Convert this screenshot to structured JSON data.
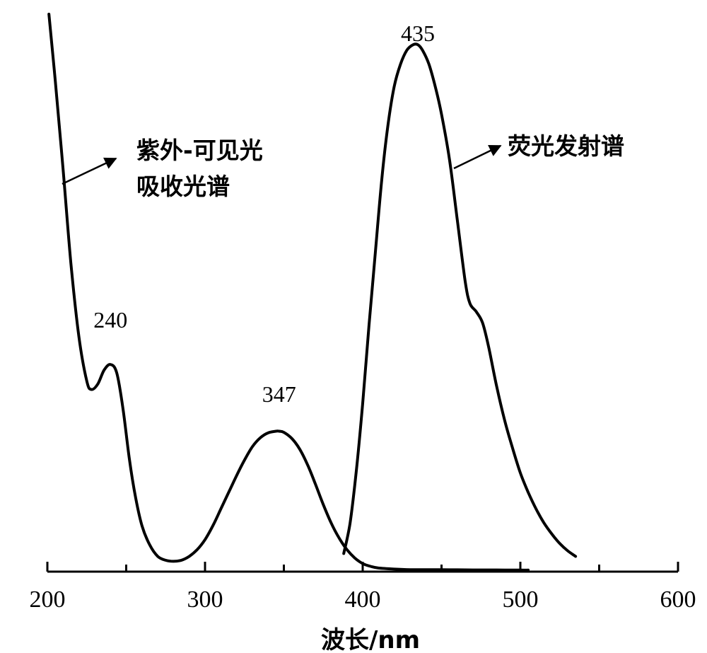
{
  "chart_data": {
    "type": "line",
    "title": "",
    "xlabel": "波长/nm",
    "ylabel": "",
    "xlim": [
      200,
      600
    ],
    "xticks": [
      200,
      300,
      400,
      500,
      600
    ],
    "xtick_labels": [
      "200",
      "300",
      "400",
      "500",
      "600"
    ],
    "minor_xticks": [
      250,
      350,
      450,
      550
    ],
    "y_axis_visible": false,
    "grid": false,
    "legend": "none",
    "series": [
      {
        "label": "紫外-可见光\n吸收光谱",
        "label_lines": [
          "紫外-可见光",
          "吸收光谱"
        ],
        "x": [
          201,
          205,
          210,
          215,
          220,
          225,
          228,
          232,
          236,
          240,
          244,
          248,
          252,
          256,
          260,
          265,
          270,
          275,
          280,
          285,
          290,
          295,
          300,
          305,
          310,
          315,
          320,
          325,
          330,
          335,
          340,
          345,
          347,
          350,
          355,
          360,
          365,
          370,
          375,
          380,
          385,
          390,
          395,
          400,
          405,
          410,
          420,
          430,
          440,
          450,
          460,
          470,
          480,
          490,
          500,
          505
        ],
        "y": [
          1.0,
          0.88,
          0.72,
          0.55,
          0.42,
          0.34,
          0.325,
          0.335,
          0.36,
          0.37,
          0.355,
          0.29,
          0.2,
          0.13,
          0.08,
          0.045,
          0.025,
          0.018,
          0.016,
          0.018,
          0.025,
          0.037,
          0.055,
          0.08,
          0.11,
          0.14,
          0.17,
          0.198,
          0.222,
          0.238,
          0.247,
          0.25,
          0.25,
          0.248,
          0.237,
          0.218,
          0.19,
          0.155,
          0.118,
          0.085,
          0.058,
          0.037,
          0.022,
          0.012,
          0.007,
          0.004,
          0.002,
          0.001,
          0.001,
          0.001,
          0.0007,
          0.0005,
          0.0005,
          0.0003,
          0.0002,
          0.0002
        ]
      },
      {
        "label": "荧光发射谱",
        "label_lines": [
          "荧光发射谱"
        ],
        "x": [
          388,
          392,
          396,
          400,
          404,
          408,
          412,
          416,
          420,
          424,
          428,
          432,
          435,
          438,
          442,
          446,
          450,
          455,
          460,
          465,
          468,
          472,
          476,
          480,
          485,
          490,
          495,
          500,
          505,
          510,
          515,
          520,
          525,
          530,
          535
        ],
        "y": [
          0.03,
          0.085,
          0.18,
          0.3,
          0.44,
          0.57,
          0.7,
          0.8,
          0.87,
          0.91,
          0.935,
          0.945,
          0.945,
          0.935,
          0.91,
          0.87,
          0.82,
          0.74,
          0.63,
          0.52,
          0.48,
          0.465,
          0.445,
          0.4,
          0.33,
          0.27,
          0.22,
          0.175,
          0.14,
          0.11,
          0.085,
          0.065,
          0.048,
          0.035,
          0.025
        ]
      }
    ],
    "annotations": [
      {
        "text": "240",
        "x": 240
      },
      {
        "text": "347",
        "x": 347
      },
      {
        "text": "435",
        "x": 435
      }
    ]
  }
}
